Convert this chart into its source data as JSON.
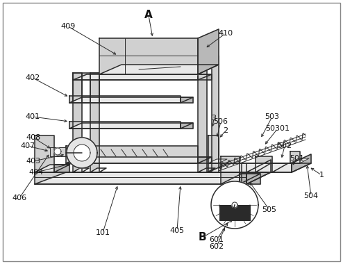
{
  "background_color": "#ffffff",
  "border_color": "#888888",
  "line_color": "#2a2a2a",
  "fill_light": "#e8e8e8",
  "fill_mid": "#d0d0d0",
  "fill_dark": "#b8b8b8",
  "figsize": [
    4.94,
    3.8
  ],
  "dpi": 100,
  "label_fs": 8,
  "label_bold_fs": 11,
  "labels": {
    "A": [
      214,
      22,
      "bold"
    ],
    "B": [
      291,
      342,
      "bold"
    ],
    "1": [
      463,
      252,
      "normal"
    ],
    "2": [
      325,
      188,
      "normal"
    ],
    "3": [
      308,
      170,
      "normal"
    ],
    "101": [
      148,
      335,
      "normal"
    ],
    "401": [
      47,
      168,
      "normal"
    ],
    "402": [
      47,
      112,
      "normal"
    ],
    "403": [
      48,
      232,
      "normal"
    ],
    "404": [
      52,
      248,
      "normal"
    ],
    "405": [
      255,
      332,
      "normal"
    ],
    "406": [
      28,
      285,
      "normal"
    ],
    "407": [
      40,
      210,
      "normal"
    ],
    "408": [
      48,
      198,
      "normal"
    ],
    "409": [
      98,
      38,
      "normal"
    ],
    "410": [
      325,
      48,
      "normal"
    ],
    "501": [
      428,
      228,
      "normal"
    ],
    "502": [
      410,
      210,
      "normal"
    ],
    "503": [
      392,
      168,
      "normal"
    ],
    "50301": [
      400,
      185,
      "normal"
    ],
    "504": [
      448,
      282,
      "normal"
    ],
    "505": [
      388,
      302,
      "normal"
    ],
    "506": [
      318,
      175,
      "normal"
    ],
    "601": [
      312,
      345,
      "normal"
    ],
    "602": [
      312,
      355,
      "normal"
    ]
  }
}
